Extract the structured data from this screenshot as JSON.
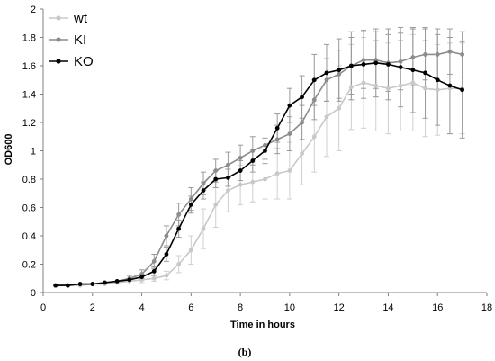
{
  "chart_data": {
    "type": "line",
    "title": "",
    "xlabel": "Time in hours",
    "ylabel": "OD600",
    "caption": "(b)",
    "xlim": [
      0,
      18
    ],
    "ylim": [
      0,
      2
    ],
    "xticks": [
      0,
      2,
      4,
      6,
      8,
      10,
      12,
      14,
      16,
      18
    ],
    "yticks": [
      0,
      0.2,
      0.4,
      0.6,
      0.8,
      1,
      1.2,
      1.4,
      1.6,
      1.8,
      2
    ],
    "xtick_labels": [
      "0",
      "2",
      "4",
      "6",
      "8",
      "10",
      "12",
      "14",
      "16",
      "18"
    ],
    "ytick_labels": [
      "0",
      "0.2",
      "0.4",
      "0.6",
      "0.8",
      "1",
      "1.2",
      "1.4",
      "1.6",
      "1.8",
      "2"
    ],
    "grid": false,
    "error_bars": true,
    "legend_position": "top-left",
    "x": [
      0.5,
      1,
      1.5,
      2,
      2.5,
      3,
      3.5,
      4,
      4.5,
      5,
      5.5,
      6,
      6.5,
      7,
      7.5,
      8,
      8.5,
      9,
      9.5,
      10,
      10.5,
      11,
      11.5,
      12,
      12.5,
      13,
      13.5,
      14,
      14.5,
      15,
      15.5,
      16,
      16.5,
      17
    ],
    "series": [
      {
        "name": "wt",
        "color": "#c8c8c8",
        "values": [
          0.05,
          0.05,
          0.05,
          0.06,
          0.06,
          0.07,
          0.08,
          0.09,
          0.1,
          0.12,
          0.2,
          0.3,
          0.45,
          0.62,
          0.72,
          0.76,
          0.78,
          0.8,
          0.84,
          0.86,
          0.98,
          1.1,
          1.24,
          1.3,
          1.45,
          1.48,
          1.46,
          1.44,
          1.46,
          1.48,
          1.44,
          1.43,
          1.44,
          1.44
        ],
        "errors": [
          0.01,
          0.01,
          0.01,
          0.01,
          0.01,
          0.01,
          0.01,
          0.02,
          0.02,
          0.03,
          0.06,
          0.1,
          0.14,
          0.16,
          0.15,
          0.14,
          0.14,
          0.14,
          0.18,
          0.2,
          0.22,
          0.25,
          0.28,
          0.3,
          0.3,
          0.32,
          0.32,
          0.32,
          0.32,
          0.34,
          0.34,
          0.32,
          0.32,
          0.32
        ]
      },
      {
        "name": "KI",
        "color": "#8c8c8c",
        "values": [
          0.05,
          0.05,
          0.06,
          0.06,
          0.07,
          0.08,
          0.1,
          0.13,
          0.22,
          0.4,
          0.55,
          0.66,
          0.77,
          0.86,
          0.9,
          0.95,
          1.0,
          1.04,
          1.08,
          1.12,
          1.2,
          1.36,
          1.5,
          1.54,
          1.6,
          1.64,
          1.64,
          1.62,
          1.63,
          1.66,
          1.68,
          1.68,
          1.7,
          1.68
        ],
        "errors": [
          0.01,
          0.01,
          0.01,
          0.01,
          0.01,
          0.01,
          0.02,
          0.03,
          0.05,
          0.07,
          0.08,
          0.08,
          0.08,
          0.08,
          0.09,
          0.09,
          0.1,
          0.1,
          0.1,
          0.12,
          0.12,
          0.14,
          0.15,
          0.17,
          0.2,
          0.2,
          0.2,
          0.2,
          0.2,
          0.2,
          0.18,
          0.18,
          0.16,
          0.16
        ]
      },
      {
        "name": "KO",
        "color": "#000000",
        "values": [
          0.05,
          0.05,
          0.06,
          0.06,
          0.07,
          0.08,
          0.09,
          0.11,
          0.15,
          0.27,
          0.45,
          0.62,
          0.72,
          0.8,
          0.81,
          0.86,
          0.93,
          1.0,
          1.16,
          1.32,
          1.38,
          1.5,
          1.55,
          1.57,
          1.6,
          1.61,
          1.62,
          1.61,
          1.59,
          1.57,
          1.55,
          1.5,
          1.46,
          1.43
        ],
        "errors": [
          0.01,
          0.01,
          0.01,
          0.01,
          0.01,
          0.01,
          0.01,
          0.02,
          0.03,
          0.05,
          0.06,
          0.06,
          0.06,
          0.06,
          0.06,
          0.07,
          0.08,
          0.09,
          0.1,
          0.12,
          0.15,
          0.18,
          0.2,
          0.22,
          0.24,
          0.24,
          0.24,
          0.25,
          0.28,
          0.3,
          0.32,
          0.32,
          0.34,
          0.34
        ]
      }
    ]
  }
}
